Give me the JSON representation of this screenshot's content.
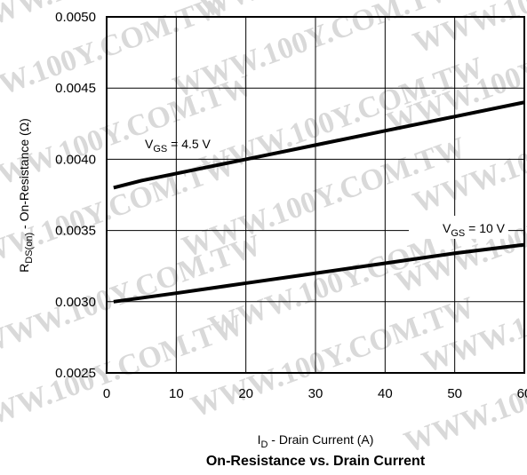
{
  "watermark": "WWW.100Y.COM.TW",
  "chart_data": {
    "type": "line",
    "title": "On-Resistance vs. Drain Current",
    "xlabel": {
      "main": "I",
      "sub": "D",
      "rest": " - Drain Current (A)"
    },
    "ylabel": {
      "main": "R",
      "sub": "DS(on)",
      "rest": " - On-Resistance (Ω)"
    },
    "xlim": [
      0,
      60
    ],
    "ylim": [
      0.0025,
      0.005
    ],
    "xticks": [
      0,
      10,
      20,
      30,
      40,
      50,
      60
    ],
    "xtick_labels": [
      "0",
      "10",
      "20",
      "30",
      "40",
      "50",
      "60"
    ],
    "yticks": [
      0.0025,
      0.003,
      0.0035,
      0.004,
      0.0045,
      0.005
    ],
    "ytick_labels": [
      "0.0025",
      "0.0030",
      "0.0035",
      "0.0040",
      "0.0045",
      "0.0050"
    ],
    "grid": true,
    "series": [
      {
        "name": "VGS = 4.5 V",
        "label": {
          "main": "V",
          "sub": "GS",
          "rest": " = 4.5 V"
        },
        "x": [
          1,
          5,
          10,
          20,
          30,
          40,
          50,
          60
        ],
        "y": [
          0.0038,
          0.00385,
          0.0039,
          0.004,
          0.0041,
          0.0042,
          0.0043,
          0.0044
        ]
      },
      {
        "name": "VGS = 10 V",
        "label": {
          "main": "V",
          "sub": "GS",
          "rest": " = 10 V"
        },
        "x": [
          1,
          10,
          20,
          30,
          40,
          50,
          60
        ],
        "y": [
          0.003,
          0.00306,
          0.00313,
          0.0032,
          0.00327,
          0.00334,
          0.0034
        ]
      }
    ]
  }
}
